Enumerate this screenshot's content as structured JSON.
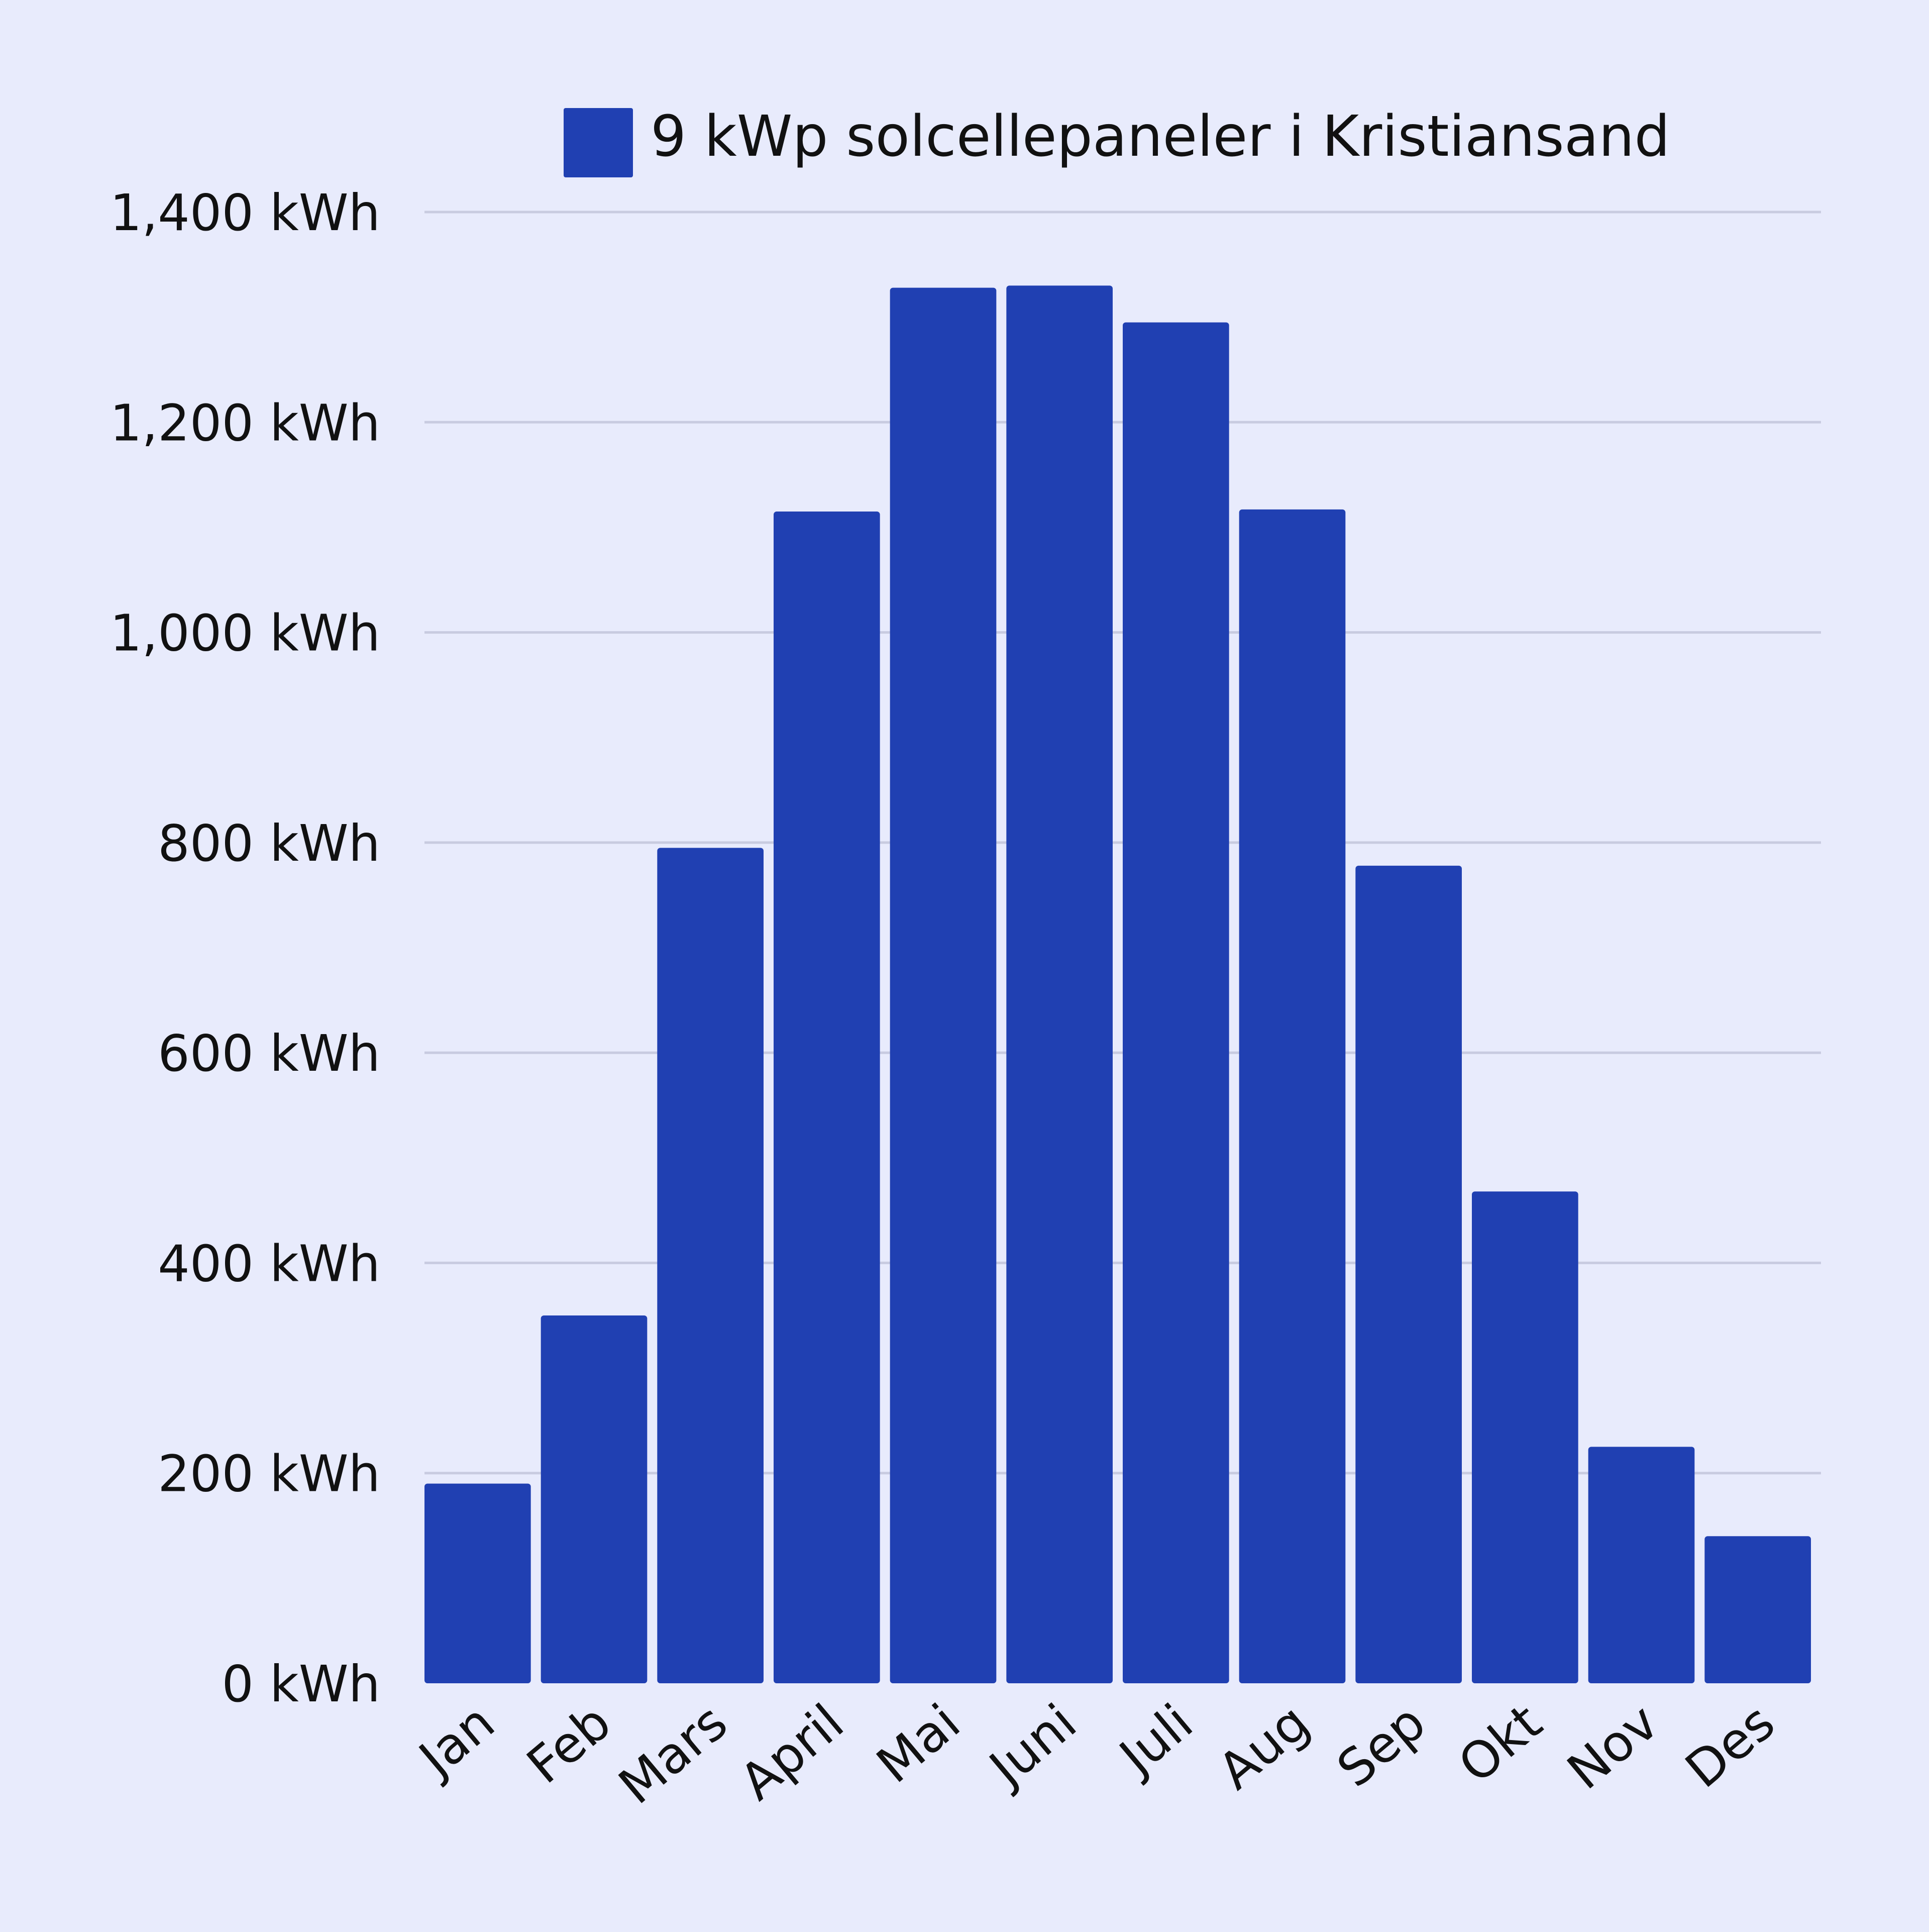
{
  "chart_data": {
    "type": "bar",
    "title": "",
    "xlabel": "",
    "ylabel": "",
    "categories": [
      "Jan",
      "Feb",
      "Mars",
      "April",
      "Mai",
      "Juni",
      "Juli",
      "Aug",
      "Sep",
      "Okt",
      "Nov",
      "Des"
    ],
    "series": [
      {
        "name": "9 kWp solcellepaneler i Kristiansand",
        "color": "#2040b2",
        "values": [
          190,
          350,
          795,
          1115,
          1328,
          1330,
          1295,
          1117,
          778,
          468,
          225,
          140
        ]
      }
    ],
    "ylim": [
      0,
      1400
    ],
    "yticks": [
      0,
      200,
      400,
      600,
      800,
      1000,
      1200,
      1400
    ],
    "ytick_labels": [
      "0 kWh",
      "200 kWh",
      "400 kWh",
      "600 kWh",
      "800 kWh",
      "1,000 kWh",
      "1,200 kWh",
      "1,400 kWh"
    ],
    "grid": true,
    "legend_position": "top-center"
  },
  "colors": {
    "background": "#e8ebfc",
    "bar": "#2040b2",
    "grid": "#c8cbe0",
    "text": "#111111"
  }
}
